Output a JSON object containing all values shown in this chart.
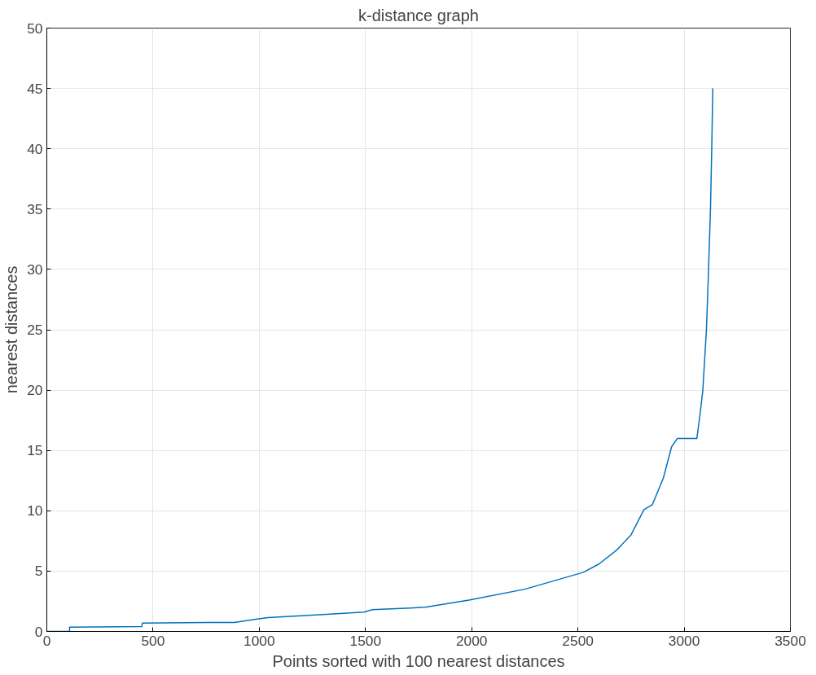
{
  "chart_data": {
    "type": "line",
    "title": "k-distance graph",
    "xlabel": "Points sorted with 100 nearest distances",
    "ylabel": "nearest distances",
    "x": [
      0,
      107,
      107,
      447,
      450,
      883,
      978,
      1041,
      1300,
      1493,
      1532,
      1781,
      1987,
      2250,
      2526,
      2600,
      2680,
      2750,
      2811,
      2850,
      2862,
      2902,
      2941,
      2968,
      3060,
      3075,
      3088,
      3105,
      3115,
      3124,
      3130,
      3135
    ],
    "series": [
      {
        "color": "#0072bd",
        "values": [
          0,
          0,
          0.36,
          0.4,
          0.7,
          0.75,
          1.0,
          1.15,
          1.4,
          1.6,
          1.8,
          2.0,
          2.6,
          3.5,
          4.9,
          5.6,
          6.7,
          8.0,
          10.1,
          10.5,
          11,
          12.7,
          15.3,
          16,
          16,
          18,
          20,
          25,
          30,
          35,
          40,
          45
        ]
      }
    ],
    "xlim": [
      0,
      3500
    ],
    "ylim": [
      0,
      50
    ],
    "xticks": [
      0,
      500,
      1000,
      1500,
      2000,
      2500,
      3000,
      3500
    ],
    "yticks": [
      0,
      5,
      10,
      15,
      20,
      25,
      30,
      35,
      40,
      45,
      50
    ],
    "grid": true,
    "line_style": "solid"
  }
}
